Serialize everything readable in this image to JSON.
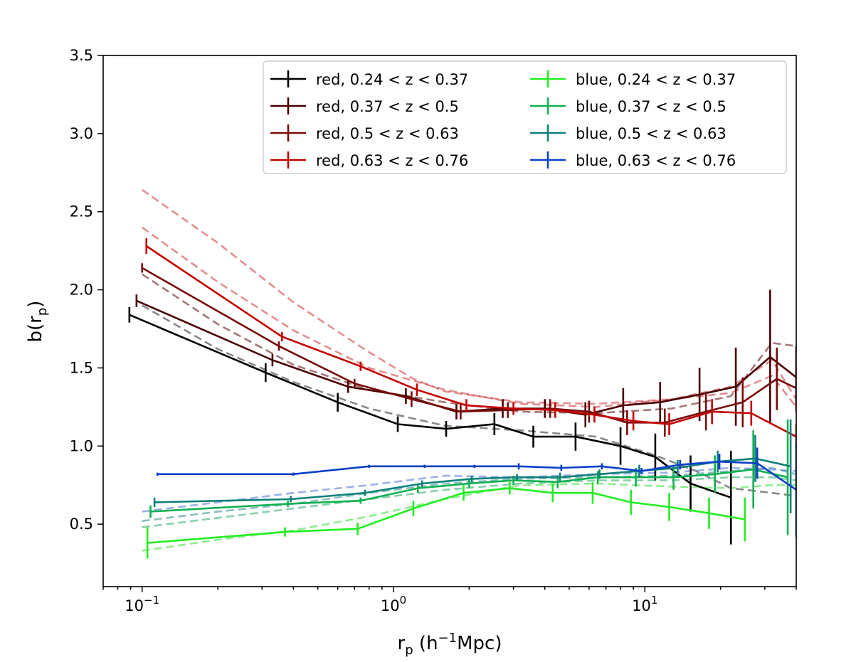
{
  "chart_data": {
    "type": "line",
    "xscale": "log",
    "xlim": [
      0.07,
      40
    ],
    "ylim": [
      0.1,
      3.5
    ],
    "xlabel": {
      "base": "r",
      "sub": "p",
      "paren_open": " (h",
      "sup": "−1",
      "unit": "Mpc)"
    },
    "ylabel": {
      "base": "b(r",
      "sub": "p",
      "close": ")"
    },
    "x_ticks": [
      {
        "value": 0.1,
        "base": "10",
        "exp": "−1"
      },
      {
        "value": 1,
        "base": "10",
        "exp": "0"
      },
      {
        "value": 10,
        "base": "10",
        "exp": "1"
      }
    ],
    "y_ticks": [
      {
        "value": 0.5,
        "label": "0.5"
      },
      {
        "value": 1.0,
        "label": "1.0"
      },
      {
        "value": 1.5,
        "label": "1.5"
      },
      {
        "value": 2.0,
        "label": "2.0"
      },
      {
        "value": 2.5,
        "label": "2.5"
      },
      {
        "value": 3.0,
        "label": "3.0"
      },
      {
        "value": 3.5,
        "label": "3.5"
      }
    ],
    "grid": false,
    "legend": {
      "position": "top-right",
      "columns": 2
    },
    "series": [
      {
        "name": "red, 0.24 < z < 0.37",
        "color": "#000000",
        "x": [
          0.089,
          0.31,
          0.6,
          1.04,
          1.62,
          2.52,
          3.6,
          5.3,
          8.0,
          11.0,
          15.2,
          22.0
        ],
        "y": [
          1.84,
          1.47,
          1.28,
          1.14,
          1.11,
          1.14,
          1.06,
          1.06,
          1.0,
          0.93,
          0.76,
          0.67
        ],
        "err": [
          0.05,
          0.06,
          0.06,
          0.05,
          0.05,
          0.07,
          0.07,
          0.09,
          0.12,
          0.15,
          0.18,
          0.3
        ]
      },
      {
        "name": "red, 0.37 < z < 0.5",
        "color": "#4a0000",
        "x": [
          0.095,
          0.33,
          0.66,
          1.12,
          1.78,
          2.72,
          4.0,
          5.8,
          8.2,
          11.5,
          16.5,
          23.0,
          31.5,
          40.0
        ],
        "y": [
          1.93,
          1.55,
          1.38,
          1.32,
          1.22,
          1.24,
          1.24,
          1.2,
          1.26,
          1.28,
          1.33,
          1.38,
          1.57,
          1.44
        ],
        "err": [
          0.04,
          0.04,
          0.04,
          0.05,
          0.05,
          0.06,
          0.06,
          0.08,
          0.11,
          0.13,
          0.17,
          0.25,
          0.43,
          0.2
        ]
      },
      {
        "name": "red, 0.5 < z < 0.63",
        "color": "#7a0a0a",
        "x": [
          0.1,
          0.35,
          0.7,
          1.18,
          1.85,
          2.85,
          4.2,
          6.0,
          8.5,
          12.0,
          17.5,
          24.5,
          33.5,
          40.0
        ],
        "y": [
          2.14,
          1.64,
          1.4,
          1.3,
          1.22,
          1.23,
          1.24,
          1.22,
          1.15,
          1.15,
          1.22,
          1.28,
          1.43,
          1.37
        ],
        "err": [
          0.03,
          0.03,
          0.03,
          0.05,
          0.05,
          0.05,
          0.06,
          0.07,
          0.08,
          0.09,
          0.12,
          0.16,
          0.2,
          0.15
        ]
      },
      {
        "name": "red, 0.63 < z < 0.76",
        "color": "#c40000",
        "x": [
          0.104,
          0.36,
          0.74,
          1.24,
          1.95,
          3.0,
          4.4,
          6.3,
          9.0,
          12.5,
          18.5,
          26.5,
          40.0
        ],
        "y": [
          2.28,
          1.7,
          1.51,
          1.36,
          1.26,
          1.24,
          1.23,
          1.2,
          1.16,
          1.14,
          1.22,
          1.21,
          1.06
        ],
        "err": [
          0.05,
          0.03,
          0.03,
          0.04,
          0.04,
          0.04,
          0.05,
          0.05,
          0.06,
          0.07,
          0.08,
          0.08,
          0.08
        ]
      },
      {
        "name": "blue, 0.24 < z < 0.37",
        "color": "#22ee22",
        "x": [
          0.105,
          0.37,
          0.72,
          1.2,
          1.9,
          2.9,
          4.3,
          6.2,
          8.8,
          12.5,
          18.0,
          25.0
        ],
        "y": [
          0.38,
          0.45,
          0.47,
          0.6,
          0.7,
          0.73,
          0.7,
          0.7,
          0.64,
          0.61,
          0.57,
          0.53
        ],
        "err": [
          0.1,
          0.03,
          0.04,
          0.05,
          0.05,
          0.04,
          0.06,
          0.07,
          0.08,
          0.09,
          0.1,
          0.14
        ]
      },
      {
        "name": "blue, 0.37 < z < 0.5",
        "color": "#0fb050",
        "x": [
          0.108,
          0.38,
          0.74,
          1.25,
          2.0,
          3.0,
          4.5,
          6.5,
          9.2,
          13.0,
          19.0,
          27.0,
          37.0
        ],
        "y": [
          0.58,
          0.63,
          0.65,
          0.73,
          0.76,
          0.78,
          0.77,
          0.8,
          0.8,
          0.8,
          0.82,
          0.85,
          0.8
        ],
        "err": [
          0.04,
          0.02,
          0.02,
          0.03,
          0.03,
          0.03,
          0.04,
          0.04,
          0.06,
          0.08,
          0.12,
          0.25,
          0.37
        ]
      },
      {
        "name": "blue, 0.5 < z < 0.63",
        "color": "#10807a",
        "x": [
          0.112,
          0.39,
          0.77,
          1.3,
          2.05,
          3.1,
          4.6,
          6.6,
          9.5,
          13.5,
          19.5,
          27.5,
          38.0
        ],
        "y": [
          0.64,
          0.66,
          0.7,
          0.76,
          0.79,
          0.8,
          0.8,
          0.82,
          0.84,
          0.86,
          0.9,
          0.92,
          0.87
        ],
        "err": [
          0.03,
          0.02,
          0.02,
          0.02,
          0.02,
          0.02,
          0.03,
          0.03,
          0.04,
          0.05,
          0.07,
          0.15,
          0.3
        ]
      },
      {
        "name": "blue, 0.63 < z < 0.76",
        "color": "#0a3fc8",
        "x": [
          0.115,
          0.4,
          0.8,
          1.33,
          2.1,
          3.15,
          4.65,
          6.75,
          9.7,
          13.8,
          19.8,
          28.0,
          40.0
        ],
        "y": [
          0.82,
          0.82,
          0.87,
          0.87,
          0.87,
          0.87,
          0.86,
          0.87,
          0.84,
          0.88,
          0.9,
          0.89,
          0.72
        ],
        "err": [
          0.01,
          0.01,
          0.01,
          0.01,
          0.01,
          0.02,
          0.02,
          0.02,
          0.02,
          0.03,
          0.05,
          0.1,
          0.3
        ]
      }
    ],
    "model_curves": [
      {
        "color": "#555555",
        "opacity": 0.7,
        "x": [
          0.1,
          0.2,
          0.4,
          0.8,
          1.6,
          3.2,
          6.4,
          11.0,
          16.0,
          22.0,
          32.0,
          40.0
        ],
        "y": [
          1.9,
          1.62,
          1.41,
          1.24,
          1.13,
          1.1,
          1.06,
          0.94,
          0.84,
          0.73,
          0.7,
          0.68
        ]
      },
      {
        "color": "#6a1a1a",
        "opacity": 0.6,
        "x": [
          0.1,
          0.2,
          0.4,
          0.8,
          1.6,
          3.2,
          6.4,
          12.8,
          22.0,
          32.0,
          40.0
        ],
        "y": [
          2.1,
          1.78,
          1.52,
          1.36,
          1.28,
          1.22,
          1.21,
          1.24,
          1.32,
          1.66,
          1.64
        ]
      },
      {
        "color": "#cc3333",
        "opacity": 0.55,
        "x": [
          0.1,
          0.2,
          0.4,
          0.8,
          1.6,
          3.2,
          6.4,
          12.8,
          22.0,
          32.0,
          40.0
        ],
        "y": [
          2.4,
          2.05,
          1.74,
          1.5,
          1.36,
          1.27,
          1.25,
          1.3,
          1.38,
          1.55,
          1.3
        ]
      },
      {
        "color": "#cc3333",
        "opacity": 0.55,
        "x": [
          0.1,
          0.2,
          0.4,
          0.8,
          1.2,
          1.6,
          3.2,
          6.4,
          12.8,
          22.0,
          32.0,
          40.0
        ],
        "y": [
          2.64,
          2.3,
          1.92,
          1.6,
          1.43,
          1.35,
          1.28,
          1.27,
          1.3,
          1.34,
          1.45,
          1.25
        ]
      },
      {
        "color": "#33dd33",
        "opacity": 0.55,
        "x": [
          0.1,
          0.2,
          0.4,
          0.8,
          1.6,
          3.2,
          6.4,
          12.8,
          22.0,
          32.0,
          40.0
        ],
        "y": [
          0.33,
          0.4,
          0.46,
          0.55,
          0.66,
          0.75,
          0.76,
          0.74,
          0.73,
          0.75,
          0.75
        ]
      },
      {
        "color": "#22aa66",
        "opacity": 0.55,
        "x": [
          0.1,
          0.2,
          0.4,
          0.8,
          1.6,
          3.2,
          6.4,
          12.8,
          22.0,
          32.0,
          40.0
        ],
        "y": [
          0.48,
          0.54,
          0.6,
          0.66,
          0.72,
          0.76,
          0.78,
          0.78,
          0.8,
          0.8,
          0.78
        ]
      },
      {
        "color": "#2a8a8a",
        "opacity": 0.55,
        "x": [
          0.1,
          0.2,
          0.4,
          0.8,
          1.6,
          3.2,
          6.4,
          12.8,
          22.0,
          32.0,
          40.0
        ],
        "y": [
          0.52,
          0.58,
          0.63,
          0.7,
          0.76,
          0.79,
          0.8,
          0.81,
          0.84,
          0.86,
          0.82
        ]
      },
      {
        "color": "#4a70d8",
        "opacity": 0.55,
        "x": [
          0.1,
          0.2,
          0.4,
          0.8,
          1.6,
          3.2,
          6.4,
          12.8,
          22.0,
          32.0,
          40.0
        ],
        "y": [
          0.58,
          0.64,
          0.7,
          0.75,
          0.81,
          0.8,
          0.82,
          0.83,
          0.86,
          0.85,
          0.84
        ]
      }
    ]
  }
}
